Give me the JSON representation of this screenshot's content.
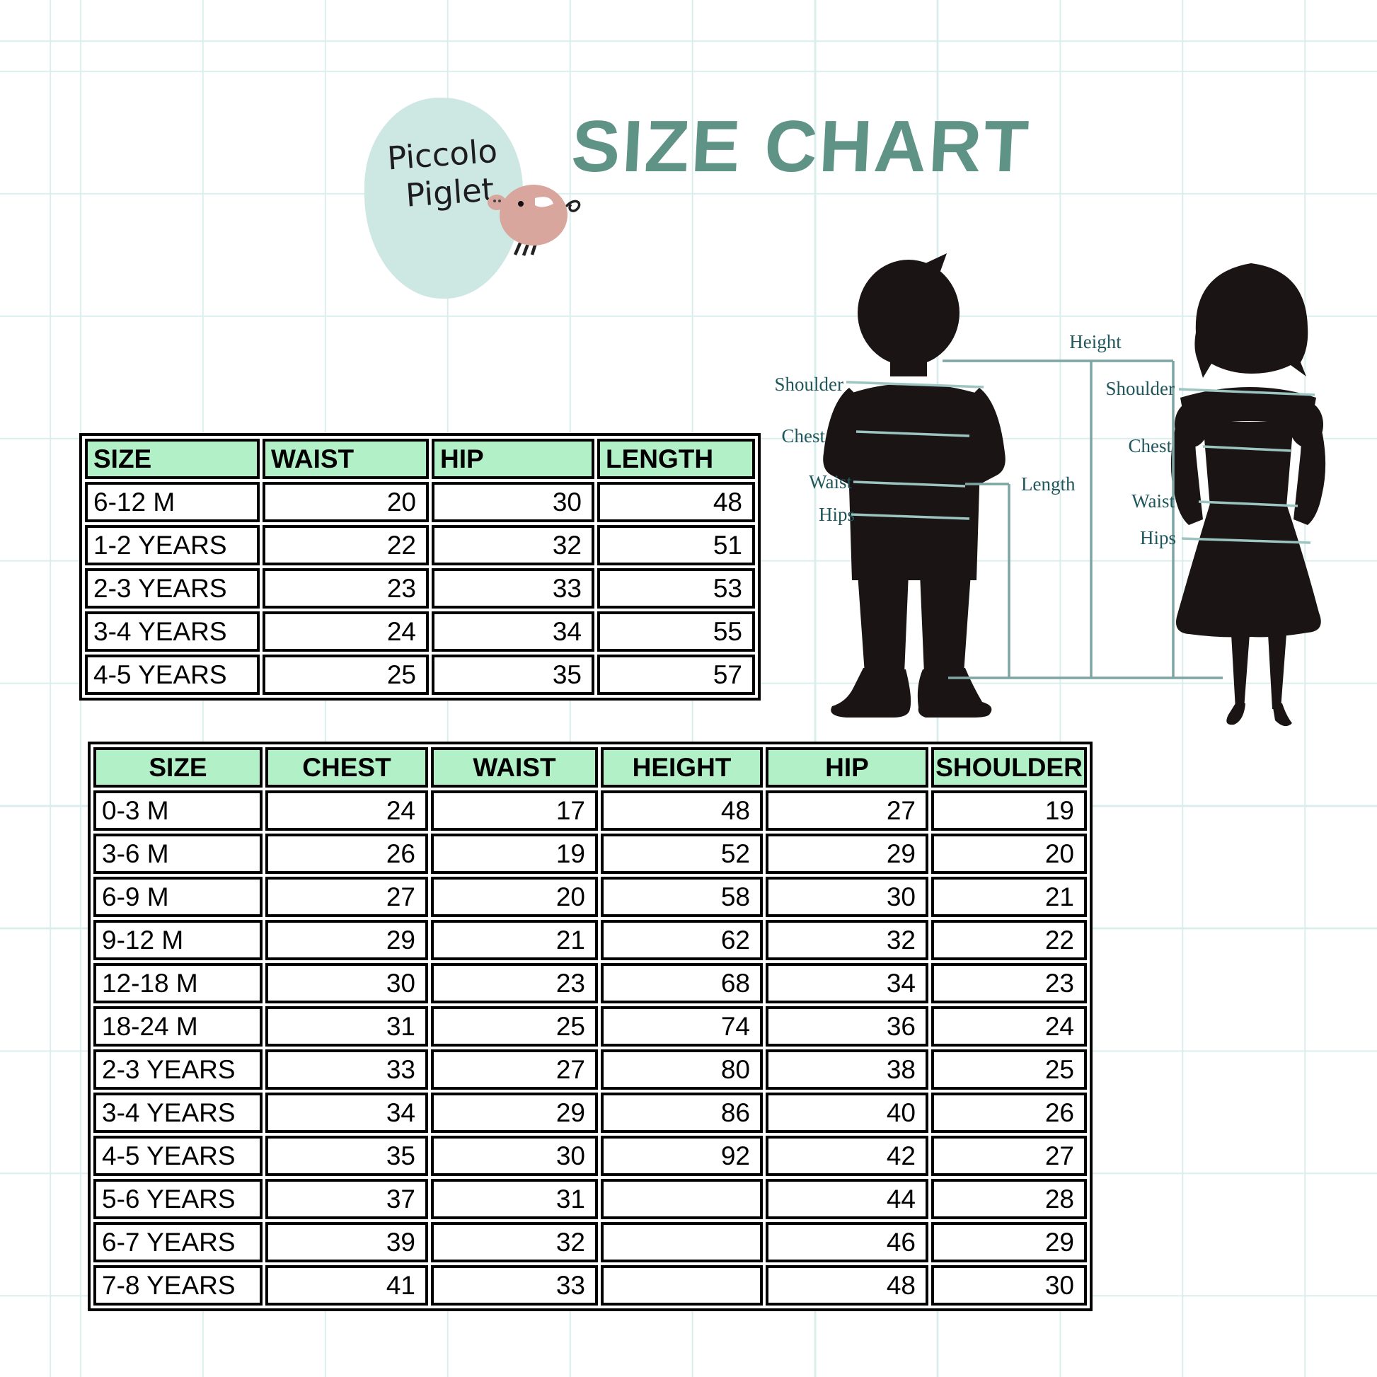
{
  "title": "SIZE CHART",
  "logo": {
    "name_line1": "Piccolo",
    "name_line2": "Piglet"
  },
  "diagram": {
    "height_label": "Height",
    "length_label": "Length",
    "boy_labels": {
      "shoulder": "Shoulder",
      "chest": "Chest",
      "waist": "Waist",
      "hips": "Hips"
    },
    "girl_labels": {
      "shoulder": "Shoulder",
      "chest": "Chest",
      "waist": "Waist",
      "hips": "Hips"
    }
  },
  "size_table_small": {
    "headers": [
      "SIZE",
      "WAIST",
      "HIP",
      "LENGTH"
    ],
    "rows": [
      [
        "6-12 M",
        "20",
        "30",
        "48"
      ],
      [
        "1-2 YEARS",
        "22",
        "32",
        "51"
      ],
      [
        "2-3 YEARS",
        "23",
        "33",
        "53"
      ],
      [
        "3-4 YEARS",
        "24",
        "34",
        "55"
      ],
      [
        "4-5 YEARS",
        "25",
        "35",
        "57"
      ]
    ]
  },
  "size_table_large": {
    "headers": [
      "SIZE",
      "CHEST",
      "WAIST",
      "HEIGHT",
      "HIP",
      "SHOULDER"
    ],
    "rows": [
      [
        "0-3 M",
        "24",
        "17",
        "48",
        "27",
        "19"
      ],
      [
        "3-6 M",
        "26",
        "19",
        "52",
        "29",
        "20"
      ],
      [
        "6-9 M",
        "27",
        "20",
        "58",
        "30",
        "21"
      ],
      [
        "9-12 M",
        "29",
        "21",
        "62",
        "32",
        "22"
      ],
      [
        "12-18 M",
        "30",
        "23",
        "68",
        "34",
        "23"
      ],
      [
        "18-24 M",
        "31",
        "25",
        "74",
        "36",
        "24"
      ],
      [
        "2-3 YEARS",
        "33",
        "27",
        "80",
        "38",
        "25"
      ],
      [
        "3-4 YEARS",
        "34",
        "29",
        "86",
        "40",
        "26"
      ],
      [
        "4-5 YEARS",
        "35",
        "30",
        "92",
        "42",
        "27"
      ],
      [
        "5-6 YEARS",
        "37",
        "31",
        "",
        "44",
        "28"
      ],
      [
        "6-7 YEARS",
        "39",
        "32",
        "",
        "46",
        "29"
      ],
      [
        "7-8 YEARS",
        "41",
        "33",
        "",
        "48",
        "30"
      ]
    ]
  },
  "colors": {
    "header_green": "#b2f0c7",
    "title_teal": "#5f9386",
    "label_teal": "#1f575c",
    "measure_line": "#9cc4c0",
    "bracket_line": "#7fa5a3",
    "silhouette": "#1a1414",
    "grid_line": "#d9eeec",
    "logo_circle": "#cde7e3",
    "pig_pink": "#d9a69e"
  }
}
